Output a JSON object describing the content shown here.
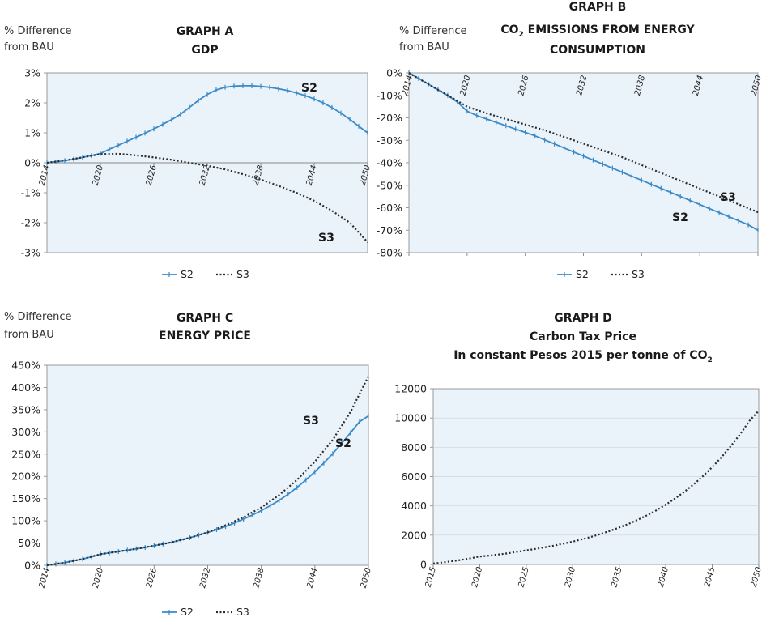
{
  "colors": {
    "s2": "#3a8ac8",
    "s3": "#2b2b2b",
    "plot_bg": "#eaf2fa",
    "plot_border": "#9a9a9a",
    "grid": "#c9d4e0"
  },
  "chart_data": [
    {
      "type": "line",
      "title": [
        "GRAPH A",
        "GDP"
      ],
      "ylabel": [
        "% Difference",
        "from BAU"
      ],
      "xticks": [
        "2014",
        "2020",
        "2026",
        "2032",
        "2038",
        "2044",
        "2050"
      ],
      "xlim": [
        2014,
        2050
      ],
      "yticks": [
        "3%",
        "2%",
        "1%",
        "0%",
        "-1%",
        "-2%",
        "-3%"
      ],
      "ylim": [
        -3,
        3
      ],
      "grid": false,
      "legend": [
        "S2",
        "S3"
      ],
      "annotations": [
        {
          "text": "S2",
          "series": "S2"
        },
        {
          "text": "S3",
          "series": "S3"
        }
      ],
      "series": [
        {
          "name": "S2",
          "style": "solid-marker",
          "x": [
            2014,
            2015,
            2016,
            2017,
            2018,
            2019,
            2020,
            2021,
            2022,
            2023,
            2024,
            2025,
            2026,
            2027,
            2028,
            2029,
            2030,
            2031,
            2032,
            2033,
            2034,
            2035,
            2036,
            2037,
            2038,
            2039,
            2040,
            2041,
            2042,
            2043,
            2044,
            2045,
            2046,
            2047,
            2048,
            2049,
            2050
          ],
          "y": [
            0,
            0.03,
            0.07,
            0.12,
            0.18,
            0.24,
            0.31,
            0.45,
            0.58,
            0.72,
            0.85,
            0.99,
            1.13,
            1.28,
            1.44,
            1.62,
            1.85,
            2.08,
            2.28,
            2.43,
            2.52,
            2.56,
            2.57,
            2.57,
            2.55,
            2.52,
            2.47,
            2.41,
            2.33,
            2.24,
            2.13,
            2.0,
            1.84,
            1.66,
            1.45,
            1.22,
            1.0
          ]
        },
        {
          "name": "S3",
          "style": "dotted",
          "x": [
            2014,
            2016,
            2018,
            2020,
            2022,
            2024,
            2026,
            2028,
            2030,
            2032,
            2034,
            2036,
            2038,
            2040,
            2042,
            2044,
            2046,
            2048,
            2050
          ],
          "y": [
            0,
            0.08,
            0.18,
            0.29,
            0.3,
            0.25,
            0.18,
            0.1,
            0.0,
            -0.1,
            -0.22,
            -0.38,
            -0.56,
            -0.77,
            -1.0,
            -1.27,
            -1.6,
            -2.0,
            -2.65
          ]
        }
      ]
    },
    {
      "type": "line",
      "title": [
        "GRAPH B",
        "CO2 EMISSIONS FROM ENERGY",
        "CONSUMPTION"
      ],
      "ylabel": [
        "% Difference",
        "from BAU"
      ],
      "xticks": [
        "2014",
        "2020",
        "2026",
        "2032",
        "2038",
        "2044",
        "2050"
      ],
      "xlim": [
        2014,
        2050
      ],
      "yticks": [
        "0%",
        "-10%",
        "-20%",
        "-30%",
        "-40%",
        "-50%",
        "-60%",
        "-70%",
        "-80%"
      ],
      "ylim": [
        -80,
        0
      ],
      "grid": false,
      "legend": [
        "S2",
        "S3"
      ],
      "annotations": [
        {
          "text": "S3",
          "series": "S3"
        },
        {
          "text": "S2",
          "series": "S2"
        }
      ],
      "series": [
        {
          "name": "S2",
          "style": "solid-marker",
          "x": [
            2014,
            2015,
            2016,
            2017,
            2018,
            2019,
            2020,
            2021,
            2022,
            2023,
            2024,
            2025,
            2026,
            2027,
            2028,
            2029,
            2030,
            2031,
            2032,
            2033,
            2034,
            2035,
            2036,
            2037,
            2038,
            2039,
            2040,
            2041,
            2042,
            2043,
            2044,
            2045,
            2046,
            2047,
            2048,
            2049,
            2050
          ],
          "y": [
            0,
            -2.5,
            -5,
            -7.5,
            -10,
            -13,
            -17,
            -19,
            -20.5,
            -22,
            -23.5,
            -25,
            -26.5,
            -28,
            -29.8,
            -31.6,
            -33.4,
            -35.2,
            -37,
            -38.8,
            -40.6,
            -42.4,
            -44.2,
            -46,
            -47.8,
            -49.6,
            -51.4,
            -53.2,
            -55,
            -56.8,
            -58.6,
            -60.4,
            -62.2,
            -64,
            -65.8,
            -67.6,
            -70
          ]
        },
        {
          "name": "S3",
          "style": "dotted",
          "x": [
            2014,
            2016,
            2018,
            2020,
            2022,
            2024,
            2026,
            2028,
            2030,
            2032,
            2034,
            2036,
            2038,
            2040,
            2042,
            2044,
            2046,
            2048,
            2050
          ],
          "y": [
            0,
            -5,
            -10,
            -15,
            -18,
            -20.5,
            -23,
            -25.5,
            -28.5,
            -31.5,
            -34.5,
            -37.5,
            -41,
            -44.5,
            -48,
            -51.5,
            -55,
            -58.5,
            -62
          ]
        }
      ]
    },
    {
      "type": "line",
      "title": [
        "GRAPH C",
        "ENERGY PRICE"
      ],
      "ylabel": [
        "% Difference",
        "from BAU"
      ],
      "xticks": [
        "2014",
        "2020",
        "2026",
        "2032",
        "2038",
        "2044",
        "2050"
      ],
      "xlim": [
        2014,
        2050
      ],
      "yticks": [
        "450%",
        "400%",
        "350%",
        "300%",
        "250%",
        "200%",
        "150%",
        "100%",
        "50%",
        "0%"
      ],
      "ylim": [
        0,
        450
      ],
      "grid": false,
      "legend": [
        "S2",
        "S3"
      ],
      "annotations": [
        {
          "text": "S3",
          "series": "S3"
        },
        {
          "text": "S2",
          "series": "S2"
        }
      ],
      "series": [
        {
          "name": "S2",
          "style": "solid-marker",
          "x": [
            2014,
            2015,
            2016,
            2017,
            2018,
            2019,
            2020,
            2021,
            2022,
            2023,
            2024,
            2025,
            2026,
            2027,
            2028,
            2029,
            2030,
            2031,
            2032,
            2033,
            2034,
            2035,
            2036,
            2037,
            2038,
            2039,
            2040,
            2041,
            2042,
            2043,
            2044,
            2045,
            2046,
            2047,
            2048,
            2049,
            2050
          ],
          "y": [
            0,
            3,
            6,
            10,
            14,
            19,
            25,
            28,
            31,
            34,
            37,
            40,
            44,
            48,
            52,
            57,
            62,
            68,
            74,
            80,
            87,
            95,
            104,
            113,
            123,
            134,
            146,
            160,
            175,
            192,
            210,
            230,
            251,
            274,
            298,
            323,
            336
          ]
        },
        {
          "name": "S3",
          "style": "dotted",
          "x": [
            2014,
            2016,
            2018,
            2020,
            2022,
            2024,
            2026,
            2028,
            2030,
            2032,
            2034,
            2036,
            2038,
            2040,
            2042,
            2044,
            2046,
            2048,
            2050
          ],
          "y": [
            0,
            6,
            14,
            25,
            31,
            37,
            44,
            52,
            62,
            74,
            90,
            108,
            130,
            158,
            192,
            233,
            282,
            345,
            425
          ]
        }
      ]
    },
    {
      "type": "line",
      "title": [
        "GRAPH D",
        "Carbon Tax Price",
        "In constant Pesos 2015 per tonne of CO2"
      ],
      "xticks": [
        "2015",
        "2020",
        "2025",
        "2030",
        "2035",
        "2040",
        "2045",
        "2050"
      ],
      "xlim": [
        2015,
        2050
      ],
      "yticks": [
        "12000",
        "10000",
        "8000",
        "6000",
        "4000",
        "2000",
        "0"
      ],
      "ylim": [
        0,
        12000
      ],
      "grid": true,
      "series": [
        {
          "name": "",
          "style": "dotted",
          "x": [
            2015,
            2016,
            2017,
            2018,
            2019,
            2020,
            2021,
            2022,
            2023,
            2024,
            2025,
            2026,
            2027,
            2028,
            2029,
            2030,
            2031,
            2032,
            2033,
            2034,
            2035,
            2036,
            2037,
            2038,
            2039,
            2040,
            2041,
            2042,
            2043,
            2044,
            2045,
            2046,
            2047,
            2048,
            2049,
            2050
          ],
          "y": [
            60,
            130,
            220,
            310,
            420,
            540,
            600,
            680,
            760,
            860,
            960,
            1060,
            1170,
            1290,
            1420,
            1560,
            1720,
            1890,
            2080,
            2290,
            2520,
            2770,
            3050,
            3360,
            3700,
            4080,
            4500,
            4960,
            5470,
            6030,
            6650,
            7330,
            8080,
            8900,
            9800,
            10500
          ]
        }
      ]
    }
  ]
}
